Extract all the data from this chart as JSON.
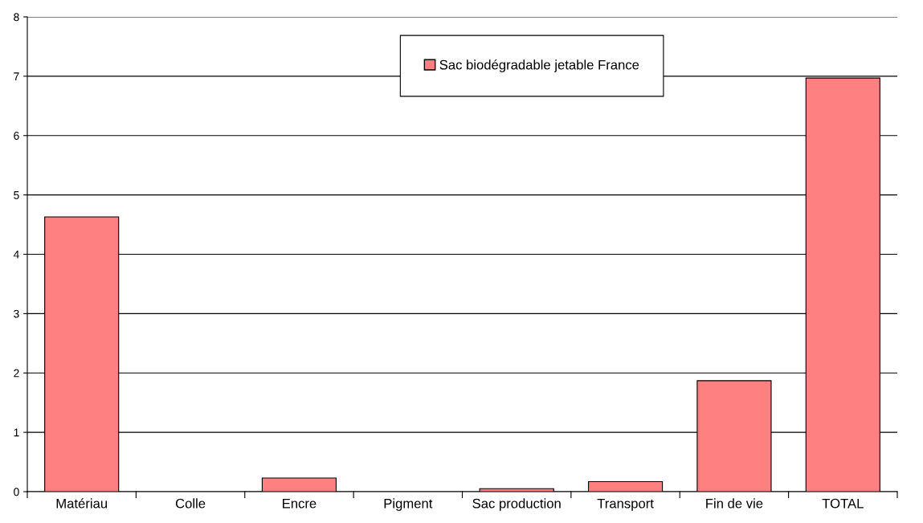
{
  "chart_data": {
    "type": "bar",
    "categories": [
      "Matériau",
      "Colle",
      "Encre",
      "Pigment",
      "Sac production",
      "Transport",
      "Fin de vie",
      "TOTAL"
    ],
    "series": [
      {
        "name": "Sac biodégradable jetable France",
        "color": "#ff8080",
        "values": [
          4.63,
          null,
          0.23,
          null,
          0.05,
          0.17,
          1.87,
          6.97
        ]
      }
    ],
    "ylim": [
      0,
      8
    ],
    "yticks": [
      0,
      1,
      2,
      3,
      4,
      5,
      6,
      7,
      8
    ],
    "grid": "y",
    "legend": "top"
  }
}
